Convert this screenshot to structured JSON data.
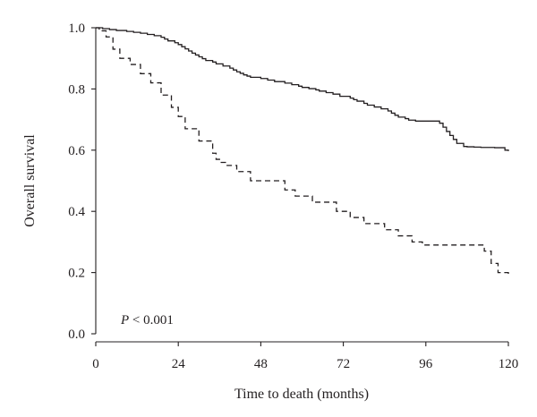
{
  "chart_data": {
    "type": "line",
    "xlabel": "Time to death (months)",
    "ylabel": "Overall survival",
    "xlim": [
      0,
      120
    ],
    "ylim": [
      0,
      1
    ],
    "xticks": [
      0,
      24,
      48,
      72,
      96,
      120
    ],
    "yticks": [
      0.0,
      0.2,
      0.4,
      0.6,
      0.8,
      1.0
    ],
    "xtick_labels": [
      "0",
      "24",
      "48",
      "72",
      "96",
      "120"
    ],
    "ytick_labels": [
      "0.0",
      "0.2",
      "0.4",
      "0.6",
      "0.8",
      "1.0"
    ],
    "grid": false,
    "legend": "none",
    "annotation": {
      "italic": "P",
      "rest": " < 0.001"
    },
    "series": [
      {
        "style": "solid",
        "step": true,
        "x": [
          0,
          2,
          4,
          6,
          9,
          11,
          13,
          15,
          17,
          19,
          20,
          21,
          23,
          24,
          25,
          26,
          27,
          28,
          29,
          30,
          31,
          32,
          34,
          35,
          37,
          39,
          40,
          41,
          42,
          43,
          44,
          45,
          48,
          50,
          52,
          55,
          57,
          59,
          60,
          62,
          64,
          65,
          67,
          69,
          71,
          74,
          75,
          76,
          78,
          79,
          81,
          83,
          85,
          86,
          87,
          88,
          90,
          91,
          93,
          100,
          101,
          102,
          103,
          104,
          105,
          107,
          108,
          110,
          112,
          116,
          119,
          120
        ],
        "y": [
          1.0,
          0.997,
          0.994,
          0.991,
          0.988,
          0.985,
          0.982,
          0.978,
          0.974,
          0.969,
          0.963,
          0.957,
          0.951,
          0.945,
          0.938,
          0.931,
          0.924,
          0.917,
          0.911,
          0.905,
          0.899,
          0.893,
          0.888,
          0.882,
          0.875,
          0.868,
          0.862,
          0.856,
          0.851,
          0.846,
          0.842,
          0.838,
          0.834,
          0.829,
          0.824,
          0.819,
          0.814,
          0.809,
          0.805,
          0.801,
          0.797,
          0.793,
          0.788,
          0.783,
          0.776,
          0.77,
          0.765,
          0.76,
          0.753,
          0.747,
          0.741,
          0.735,
          0.728,
          0.721,
          0.714,
          0.708,
          0.703,
          0.698,
          0.695,
          0.688,
          0.675,
          0.661,
          0.648,
          0.635,
          0.622,
          0.612,
          0.611,
          0.61,
          0.609,
          0.608,
          0.6,
          0.597
        ]
      },
      {
        "style": "dashed",
        "step": true,
        "x": [
          0,
          1,
          3,
          5,
          7,
          10,
          13,
          16,
          19,
          22,
          24,
          26,
          30,
          34,
          35,
          36,
          38,
          41,
          45,
          48,
          55,
          58,
          60,
          63,
          70,
          74,
          78,
          84,
          88,
          92,
          95,
          110,
          113,
          115,
          117,
          120
        ],
        "y": [
          1.0,
          0.99,
          0.97,
          0.93,
          0.9,
          0.88,
          0.85,
          0.82,
          0.78,
          0.74,
          0.71,
          0.67,
          0.63,
          0.59,
          0.57,
          0.56,
          0.55,
          0.53,
          0.5,
          0.5,
          0.47,
          0.45,
          0.45,
          0.43,
          0.4,
          0.38,
          0.36,
          0.34,
          0.32,
          0.3,
          0.29,
          0.29,
          0.27,
          0.23,
          0.2,
          0.196
        ]
      }
    ]
  }
}
